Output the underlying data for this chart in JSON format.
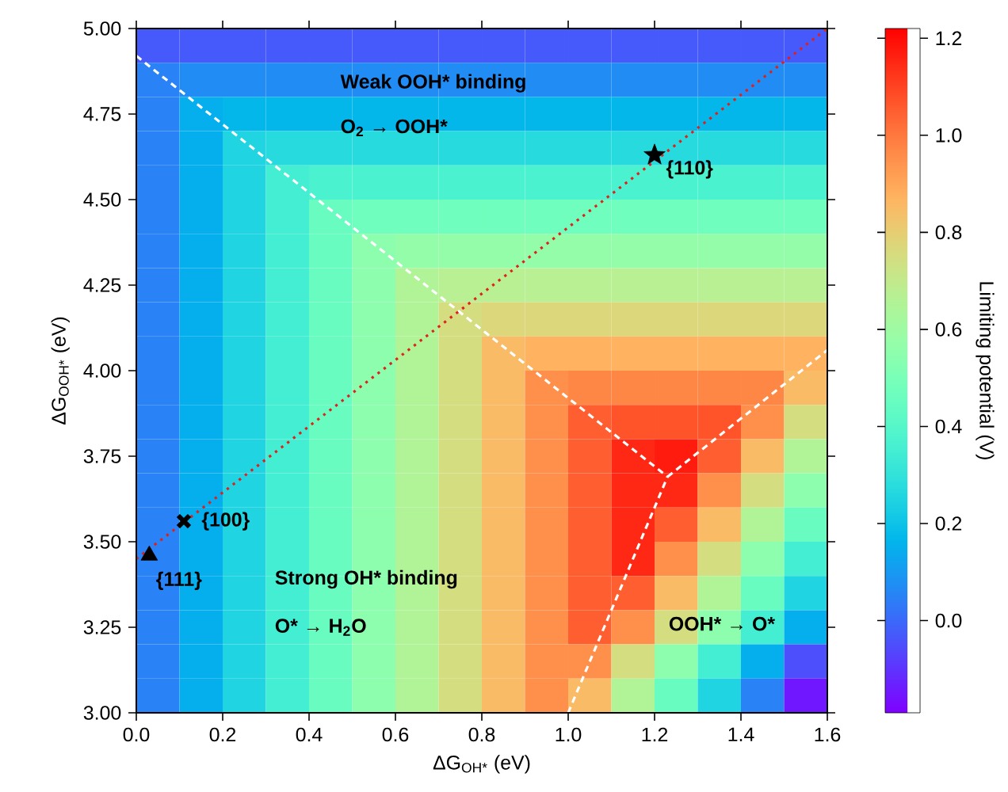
{
  "chart_data": {
    "type": "heatmap",
    "xlabel": "ΔG$_{OH*}$ (eV)",
    "ylabel": "ΔG$_{OOH*}$ (eV)",
    "clabel": "Limiting potential (V)",
    "xlim": [
      0,
      1.6
    ],
    "ylim": [
      3,
      5
    ],
    "xticks": [
      {
        "value": 0,
        "label": "0.0"
      },
      0.2,
      0.4,
      0.6,
      0.8,
      {
        "value": 1,
        "label": "1.0"
      },
      1.2,
      1.4,
      1.6
    ],
    "yticks": [
      {
        "value": 3,
        "label": "3.00"
      },
      3.25,
      {
        "value": 3.5,
        "label": "3.50"
      },
      3.75,
      {
        "value": 4,
        "label": "4.00"
      },
      4.25,
      {
        "value": 4.5,
        "label": "4.50"
      },
      4.75,
      {
        "value": 5,
        "label": "5.00"
      }
    ],
    "clim": [
      -0.19,
      1.22
    ],
    "cticks": [
      {
        "value": 0,
        "label": "0.0"
      },
      0.2,
      0.4,
      0.6,
      0.8,
      {
        "value": 1,
        "label": "1.0"
      },
      1.2
    ],
    "cells": [
      [
        -0.03,
        -0.03,
        -0.03,
        -0.03,
        -0.03,
        -0.03,
        -0.03,
        -0.03,
        -0.03,
        -0.03,
        -0.03,
        -0.03,
        -0.03,
        -0.03,
        -0.03,
        -0.03
      ],
      [
        0.05,
        0.07,
        0.07,
        0.07,
        0.07,
        0.07,
        0.07,
        0.07,
        0.07,
        0.07,
        0.07,
        0.07,
        0.07,
        0.07,
        0.07,
        0.07
      ],
      [
        0.05,
        0.15,
        0.17,
        0.17,
        0.17,
        0.17,
        0.17,
        0.17,
        0.17,
        0.17,
        0.17,
        0.17,
        0.17,
        0.17,
        0.17,
        0.17
      ],
      [
        0.05,
        0.15,
        0.25,
        0.27,
        0.27,
        0.27,
        0.27,
        0.27,
        0.27,
        0.27,
        0.27,
        0.27,
        0.27,
        0.27,
        0.27,
        0.27
      ],
      [
        0.05,
        0.15,
        0.25,
        0.35,
        0.37,
        0.37,
        0.37,
        0.37,
        0.37,
        0.37,
        0.37,
        0.37,
        0.37,
        0.37,
        0.37,
        0.37
      ],
      [
        0.05,
        0.15,
        0.25,
        0.35,
        0.45,
        0.47,
        0.47,
        0.47,
        0.47,
        0.47,
        0.47,
        0.47,
        0.47,
        0.47,
        0.47,
        0.47
      ],
      [
        0.05,
        0.15,
        0.25,
        0.35,
        0.45,
        0.55,
        0.57,
        0.57,
        0.57,
        0.57,
        0.57,
        0.57,
        0.57,
        0.57,
        0.57,
        0.57
      ],
      [
        0.05,
        0.15,
        0.25,
        0.35,
        0.45,
        0.55,
        0.65,
        0.67,
        0.67,
        0.67,
        0.67,
        0.67,
        0.67,
        0.67,
        0.67,
        0.67
      ],
      [
        0.05,
        0.15,
        0.25,
        0.35,
        0.45,
        0.55,
        0.65,
        0.75,
        0.77,
        0.77,
        0.77,
        0.77,
        0.77,
        0.77,
        0.77,
        0.77
      ],
      [
        0.05,
        0.15,
        0.25,
        0.35,
        0.45,
        0.55,
        0.65,
        0.75,
        0.85,
        0.87,
        0.87,
        0.87,
        0.87,
        0.87,
        0.87,
        0.87
      ],
      [
        0.05,
        0.15,
        0.25,
        0.35,
        0.45,
        0.55,
        0.65,
        0.75,
        0.85,
        0.95,
        0.97,
        0.97,
        0.97,
        0.97,
        0.97,
        0.85
      ],
      [
        0.05,
        0.15,
        0.25,
        0.35,
        0.45,
        0.55,
        0.65,
        0.75,
        0.85,
        0.95,
        1.05,
        1.07,
        1.07,
        1.07,
        0.95,
        0.75
      ],
      [
        0.05,
        0.15,
        0.25,
        0.35,
        0.45,
        0.55,
        0.65,
        0.75,
        0.85,
        0.95,
        1.05,
        1.15,
        1.17,
        1.05,
        0.85,
        0.65
      ],
      [
        0.05,
        0.15,
        0.25,
        0.35,
        0.45,
        0.55,
        0.65,
        0.75,
        0.85,
        0.95,
        1.05,
        1.15,
        1.15,
        0.95,
        0.75,
        0.55
      ],
      [
        0.05,
        0.15,
        0.25,
        0.35,
        0.45,
        0.55,
        0.65,
        0.75,
        0.85,
        0.95,
        1.05,
        1.15,
        1.05,
        0.85,
        0.65,
        0.45
      ],
      [
        0.05,
        0.15,
        0.25,
        0.35,
        0.45,
        0.55,
        0.65,
        0.75,
        0.85,
        0.95,
        1.05,
        1.15,
        0.95,
        0.75,
        0.55,
        0.35
      ],
      [
        0.05,
        0.15,
        0.25,
        0.35,
        0.45,
        0.55,
        0.65,
        0.75,
        0.85,
        0.95,
        1.05,
        1.05,
        0.85,
        0.65,
        0.45,
        0.25
      ],
      [
        0.05,
        0.15,
        0.25,
        0.35,
        0.45,
        0.55,
        0.65,
        0.75,
        0.85,
        0.95,
        1.05,
        0.95,
        0.75,
        0.55,
        0.35,
        0.15
      ],
      [
        0.05,
        0.15,
        0.25,
        0.35,
        0.45,
        0.55,
        0.65,
        0.75,
        0.85,
        0.95,
        0.95,
        0.75,
        0.55,
        0.35,
        0.15,
        -0.05
      ],
      [
        0.05,
        0.15,
        0.25,
        0.35,
        0.45,
        0.55,
        0.65,
        0.75,
        0.85,
        0.95,
        0.85,
        0.65,
        0.45,
        0.25,
        0.05,
        -0.15
      ]
    ],
    "series": [
      {
        "type": "line",
        "color": "#ffffff",
        "line_style": "dashed",
        "marker": "none",
        "x": [
          0,
          1.23
        ],
        "values": [
          4.92,
          3.69
        ]
      },
      {
        "type": "line",
        "color": "#ffffff",
        "line_style": "dashed",
        "marker": "none",
        "x": [
          1.23,
          1.6
        ],
        "values": [
          3.69,
          4.06
        ]
      },
      {
        "type": "line",
        "color": "#ffffff",
        "line_style": "dashed",
        "marker": "none",
        "x": [
          1.0,
          1.23
        ],
        "values": [
          3.0,
          3.69
        ]
      },
      {
        "type": "line",
        "color": "#e0201c",
        "line_style": "dotted",
        "marker": "none",
        "x": [
          0,
          1.6
        ],
        "values": [
          3.45,
          5.0
        ]
      },
      {
        "type": "scatter",
        "color": "#000000",
        "marker": "triangle",
        "x": [
          0.03
        ],
        "values": [
          3.46
        ]
      },
      {
        "type": "scatter",
        "color": "#000000",
        "marker": "cross",
        "x": [
          0.11
        ],
        "values": [
          3.56
        ]
      },
      {
        "type": "scatter",
        "color": "#000000",
        "marker": "star",
        "x": [
          1.2
        ],
        "values": [
          4.63
        ]
      }
    ],
    "annotations": [
      "Weak OOH* binding",
      "O$_{2}$ → OOH*",
      "Strong OH* binding",
      "O* → H$_{2}$O",
      "OOH* → O*",
      {
        "text": "{110}",
        "x": 1.2,
        "y": 4.63
      },
      {
        "text": "{100}",
        "x": 0.11,
        "y": 3.56
      },
      {
        "text": "{111}",
        "x": 0.03,
        "y": 3.46
      }
    ]
  }
}
